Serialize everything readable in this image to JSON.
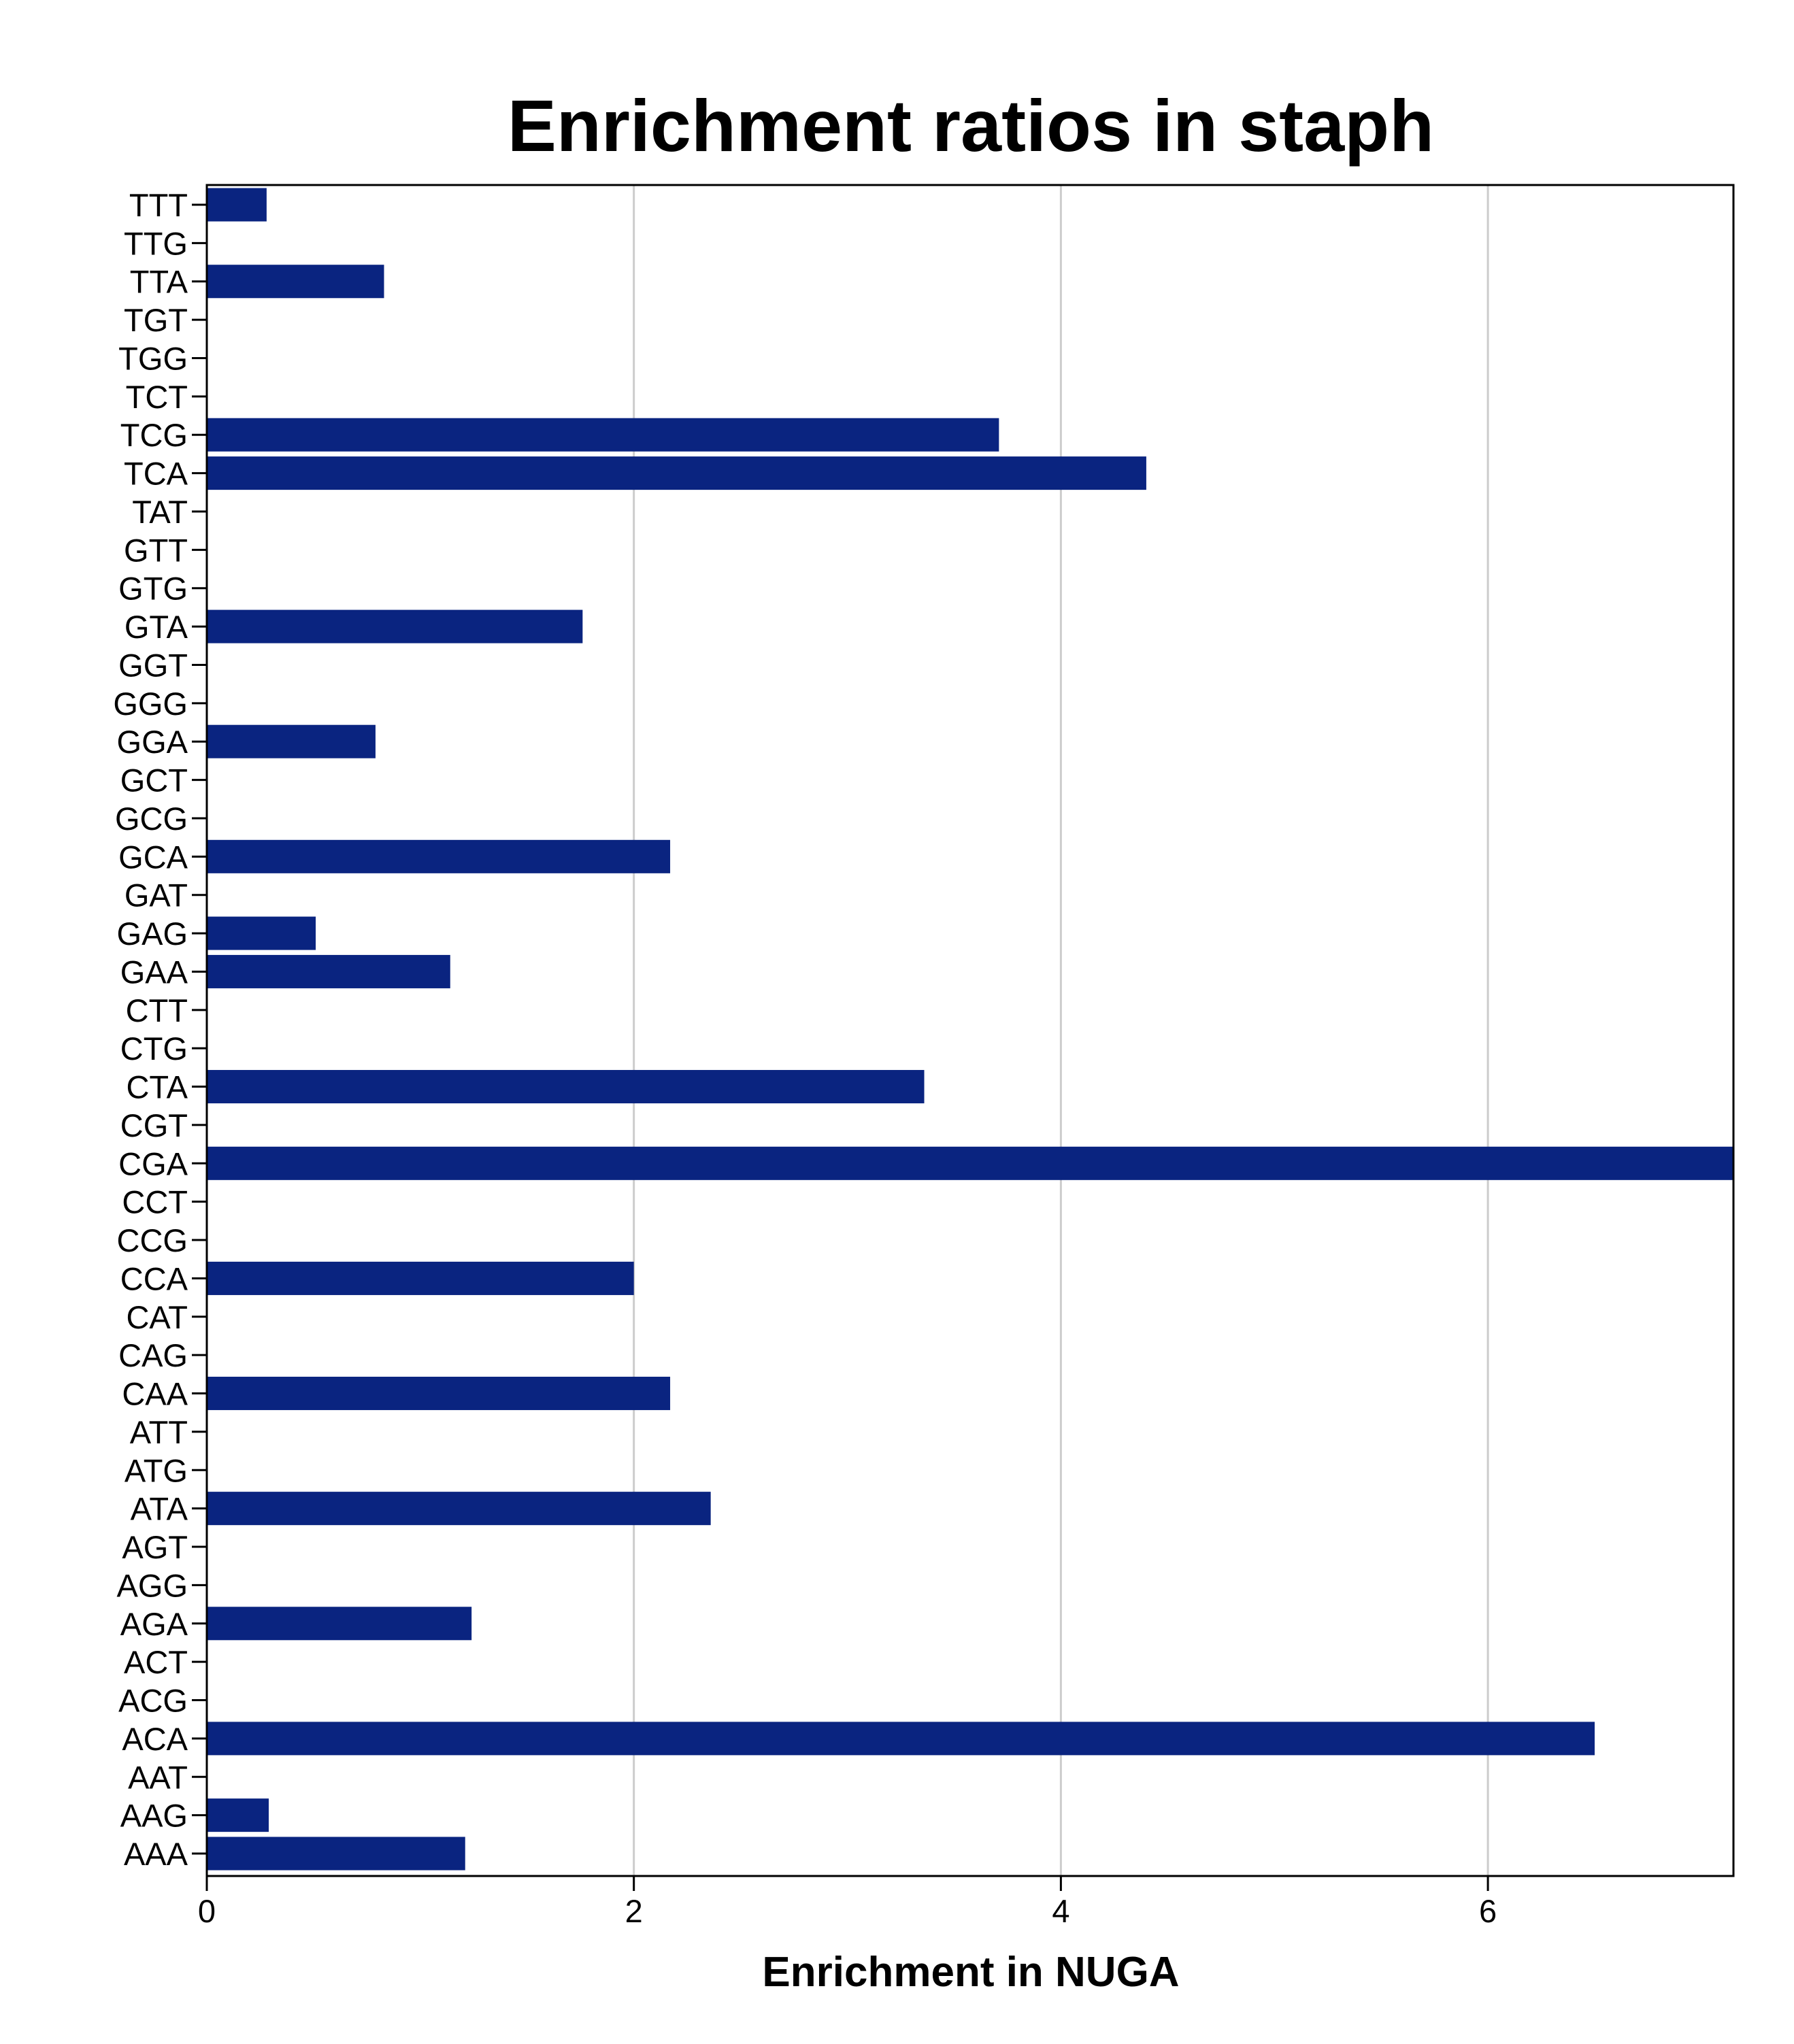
{
  "colors": {
    "bar": "#0a2480",
    "grid": "#cccccc",
    "axis": "#000000",
    "background": "#ffffff"
  },
  "chart_data": {
    "type": "bar",
    "orientation": "horizontal",
    "title": "Enrichment ratios in staph",
    "xlabel": "Enrichment in NUGA",
    "ylabel": "",
    "xlim": [
      0,
      7.15
    ],
    "xticks": [
      0,
      2,
      4,
      6
    ],
    "grid": "vertical",
    "categories": [
      "TTT",
      "TTG",
      "TTA",
      "TGT",
      "TGG",
      "TCT",
      "TCG",
      "TCA",
      "TAT",
      "GTT",
      "GTG",
      "GTA",
      "GGT",
      "GGG",
      "GGA",
      "GCT",
      "GCG",
      "GCA",
      "GAT",
      "GAG",
      "GAA",
      "CTT",
      "CTG",
      "CTA",
      "CGT",
      "CGA",
      "CCT",
      "CCG",
      "CCA",
      "CAT",
      "CAG",
      "CAA",
      "ATT",
      "ATG",
      "ATA",
      "AGT",
      "AGG",
      "AGA",
      "ACT",
      "ACG",
      "ACA",
      "AAT",
      "AAG",
      "AAA"
    ],
    "values": [
      0.28,
      0,
      0.83,
      0,
      0,
      0,
      3.71,
      4.4,
      0,
      0,
      0,
      1.76,
      0,
      0,
      0.79,
      0,
      0,
      2.17,
      0,
      0.51,
      1.14,
      0,
      0,
      3.36,
      0,
      7.15,
      0,
      0,
      2.0,
      0,
      0,
      2.17,
      0,
      0,
      2.36,
      0,
      0,
      1.24,
      0,
      0,
      6.5,
      0,
      0.29,
      1.21
    ]
  }
}
